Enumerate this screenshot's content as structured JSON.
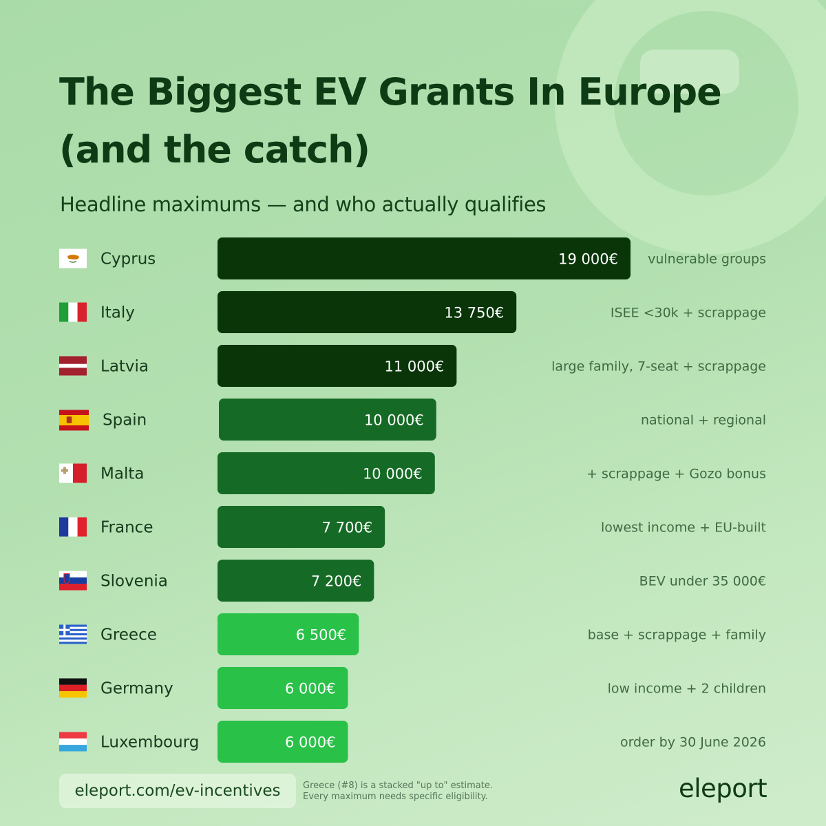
{
  "title_line1": "The Biggest EV Grants In Europe",
  "title_line2": "(and the catch)",
  "subtitle": "Headline maximums — and who actually qualifies",
  "colors": {
    "tier1": "#093509",
    "tier2": "#156b25",
    "tier3": "#29c148",
    "text": "#0e3a14"
  },
  "chart_data": {
    "type": "bar",
    "orientation": "horizontal",
    "unit": "€",
    "title": "The Biggest EV Grants In Europe (and the catch)",
    "subtitle": "Headline maximums — and who actually qualifies",
    "categories": [
      "Cyprus",
      "Italy",
      "Latvia",
      "Spain",
      "Malta",
      "France",
      "Slovenia",
      "Greece",
      "Germany",
      "Luxembourg"
    ],
    "values": [
      19000,
      13750,
      11000,
      10000,
      10000,
      7700,
      7200,
      6500,
      6000,
      6000
    ],
    "value_labels": [
      "19 000€",
      "13 750€",
      "11 000€",
      "10 000€",
      "10 000€",
      "7 700€",
      "7 200€",
      "6 500€",
      "6 000€",
      "6 000€"
    ],
    "notes": [
      "vulnerable groups",
      "ISEE <30k + scrappage",
      "large family, 7-seat + scrappage",
      "national + regional",
      "+ scrappage + Gozo bonus",
      "lowest income + EU-built",
      "BEV under 35 000€",
      "base + scrappage + family",
      "low income + 2 children",
      "order by 30 June 2026"
    ],
    "flags": [
      "cyprus-flag-icon",
      "italy-flag-icon",
      "latvia-flag-icon",
      "spain-flag-icon",
      "malta-flag-icon",
      "france-flag-icon",
      "slovenia-flag-icon",
      "greece-flag-icon",
      "germany-flag-icon",
      "luxembourg-flag-icon"
    ],
    "bar_colors": [
      "#093509",
      "#093509",
      "#093509",
      "#156b25",
      "#156b25",
      "#156b25",
      "#156b25",
      "#29c148",
      "#29c148",
      "#29c148"
    ],
    "xlim": [
      0,
      19000
    ],
    "grid": false,
    "legend": "none"
  },
  "footer": {
    "link": "eleport.com/ev-incentives",
    "note_line1": "Greece (#8) is a stacked \"up to\" estimate.",
    "note_line2": "Every maximum needs specific eligibility.",
    "logo": "eleport"
  }
}
